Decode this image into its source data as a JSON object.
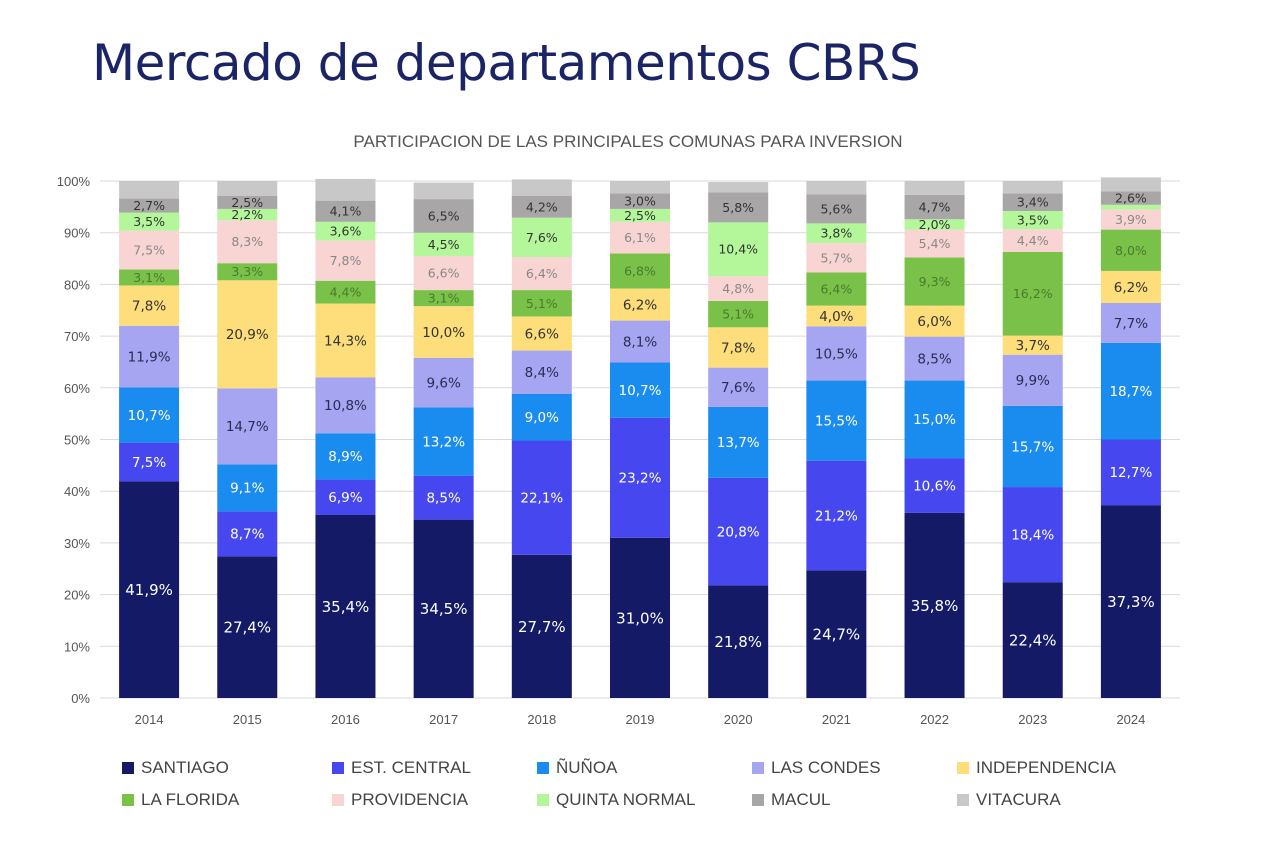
{
  "page": {
    "title": "Mercado de departamentos CBRS"
  },
  "chart_data": {
    "type": "bar",
    "stacked": true,
    "title": "PARTICIPACION DE LAS PRINCIPALES COMUNAS PARA INVERSION",
    "xlabel": "",
    "ylabel": "",
    "ylim": [
      0,
      100
    ],
    "yticks": [
      "0%",
      "10%",
      "20%",
      "30%",
      "40%",
      "50%",
      "60%",
      "70%",
      "80%",
      "90%",
      "100%"
    ],
    "grid": true,
    "legend_position": "bottom",
    "categories": [
      "2014",
      "2015",
      "2016",
      "2017",
      "2018",
      "2019",
      "2020",
      "2021",
      "2022",
      "2023",
      "2024"
    ],
    "series": [
      {
        "name": "SANTIAGO",
        "color": "#141a66",
        "label_color": "#ffffff",
        "values": [
          41.9,
          27.4,
          35.4,
          34.5,
          27.7,
          31.0,
          21.8,
          24.7,
          35.8,
          22.4,
          37.3
        ],
        "labels": [
          "41,9%",
          "27,4%",
          "35,4%",
          "34,5%",
          "27,7%",
          "31,0%",
          "21,8%",
          "24,7%",
          "35,8%",
          "22,4%",
          "37,3%"
        ]
      },
      {
        "name": "EST. CENTRAL",
        "color": "#4747f0",
        "label_color": "#ffffff",
        "values": [
          7.5,
          8.7,
          6.9,
          8.5,
          22.1,
          23.2,
          20.8,
          21.2,
          10.6,
          18.4,
          12.7
        ],
        "labels": [
          "7,5%",
          "8,7%",
          "6,9%",
          "8,5%",
          "22,1%",
          "23,2%",
          "20,8%",
          "21,2%",
          "10,6%",
          "18,4%",
          "12,7%"
        ]
      },
      {
        "name": "ÑUÑOA",
        "color": "#1a8cf0",
        "label_color": "#ffffff",
        "values": [
          10.7,
          9.1,
          8.9,
          13.2,
          9.0,
          10.7,
          13.7,
          15.5,
          15.0,
          15.7,
          18.7
        ],
        "labels": [
          "10,7%",
          "9,1%",
          "8,9%",
          "13,2%",
          "9,0%",
          "10,7%",
          "13,7%",
          "15,5%",
          "15,0%",
          "15,7%",
          "18,7%"
        ]
      },
      {
        "name": "LAS CONDES",
        "color": "#a5a5f2",
        "label_color": "#2b2b55",
        "values": [
          11.9,
          14.7,
          10.8,
          9.6,
          8.4,
          8.1,
          7.6,
          10.5,
          8.5,
          9.9,
          7.7
        ],
        "labels": [
          "11,9%",
          "14,7%",
          "10,8%",
          "9,6%",
          "8,4%",
          "8,1%",
          "7,6%",
          "10,5%",
          "8,5%",
          "9,9%",
          "7,7%"
        ]
      },
      {
        "name": "INDEPENDENCIA",
        "color": "#fdde7a",
        "label_color": "#333333",
        "values": [
          7.8,
          20.9,
          14.3,
          10.0,
          6.6,
          6.2,
          7.8,
          4.0,
          6.0,
          3.7,
          6.2
        ],
        "labels": [
          "7,8%",
          "20,9%",
          "14,3%",
          "10,0%",
          "6,6%",
          "6,2%",
          "7,8%",
          "4,0%",
          "6,0%",
          "3,7%",
          "6,2%"
        ]
      },
      {
        "name": "LA FLORIDA",
        "color": "#7ac14a",
        "label_color": "#4a7a2a",
        "values": [
          3.1,
          3.3,
          4.4,
          3.1,
          5.1,
          6.8,
          5.1,
          6.4,
          9.3,
          16.2,
          8.0
        ],
        "labels": [
          "3,1%",
          "3,3%",
          "4,4%",
          "3,1%",
          "5,1%",
          "6,8%",
          "5,1%",
          "6,4%",
          "9,3%",
          "16,2%",
          "8,0%"
        ]
      },
      {
        "name": "PROVIDENCIA",
        "color": "#f8d5d3",
        "label_color": "#888888",
        "values": [
          7.5,
          8.3,
          7.8,
          6.6,
          6.4,
          6.1,
          4.8,
          5.7,
          5.4,
          4.4,
          3.9
        ],
        "labels": [
          "7,5%",
          "8,3%",
          "7,8%",
          "6,6%",
          "6,4%",
          "6,1%",
          "4,8%",
          "5,7%",
          "5,4%",
          "4,4%",
          "3,9%"
        ]
      },
      {
        "name": "QUINTA NORMAL",
        "color": "#b3f79a",
        "label_color": "#333333",
        "values": [
          3.5,
          2.2,
          3.6,
          4.5,
          7.6,
          2.5,
          10.4,
          3.8,
          2.0,
          3.5,
          0.9
        ],
        "labels": [
          "3,5%",
          "2,2%",
          "3,6%",
          "4,5%",
          "7,6%",
          "2,5%",
          "10,4%",
          "3,8%",
          "2,0%",
          "3,5%",
          ""
        ]
      },
      {
        "name": "MACUL",
        "color": "#a8a6a6",
        "label_color": "#333333",
        "values": [
          2.7,
          2.5,
          4.1,
          6.5,
          4.2,
          3.0,
          5.8,
          5.6,
          4.7,
          3.4,
          2.6
        ],
        "labels": [
          "2,7%",
          "2,5%",
          "4,1%",
          "6,5%",
          "4,2%",
          "3,0%",
          "5,8%",
          "5,6%",
          "4,7%",
          "3,4%",
          "2,6%"
        ]
      },
      {
        "name": "VITACURA",
        "color": "#c8c8c8",
        "label_color": "#333333",
        "values": [
          3.4,
          2.9,
          4.2,
          3.2,
          3.2,
          2.4,
          2.0,
          2.6,
          2.7,
          2.4,
          2.7
        ],
        "labels": [
          "",
          "",
          "",
          "",
          "",
          "",
          "",
          "",
          "",
          "",
          ""
        ]
      }
    ]
  }
}
